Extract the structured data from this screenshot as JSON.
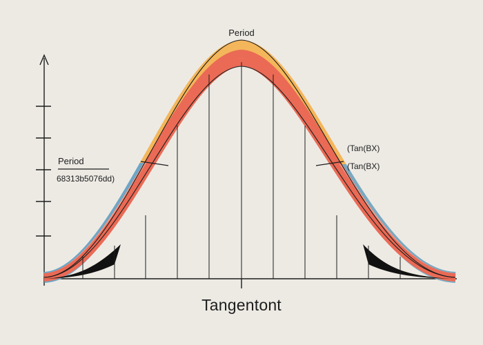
{
  "colors": {
    "background": "#edeae4",
    "ink": "#1d1d1d",
    "orange_band": "#f4b65a",
    "red_band": "#ea6a55",
    "salmon_band": "#f39c88",
    "blue_band": "#6da6c7",
    "teal_band": "#79a9c1"
  },
  "labels": {
    "top_period": "Period",
    "left_period": "Period",
    "left_code": "68313b5076dd)",
    "right_tan_1": "(Tan(BX)",
    "right_tan_2": "(Tan(BX)",
    "bottom_title": "Tangentont"
  }
}
